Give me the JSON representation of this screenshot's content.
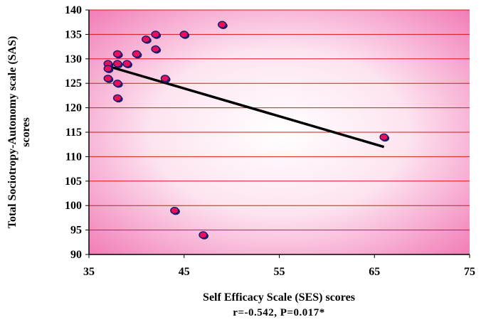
{
  "chart_data": {
    "type": "scatter",
    "title": "",
    "xlabel": "Self Efficacy Scale (SES) scores",
    "ylabel_line1": "Total Sociotropy-Autonomy scale (SAS)",
    "ylabel_line2": "scores",
    "caption": "r=-0.542, P=0.017*",
    "xlim": [
      35,
      75
    ],
    "ylim": [
      90,
      140
    ],
    "xticks": [
      35,
      45,
      55,
      65,
      75
    ],
    "yticks": [
      90,
      95,
      100,
      105,
      110,
      115,
      120,
      125,
      130,
      135,
      140
    ],
    "grid": "horizontal",
    "points": [
      {
        "x": 37,
        "y": 129
      },
      {
        "x": 37,
        "y": 128
      },
      {
        "x": 37,
        "y": 126
      },
      {
        "x": 38,
        "y": 131
      },
      {
        "x": 38,
        "y": 129
      },
      {
        "x": 38,
        "y": 125
      },
      {
        "x": 38,
        "y": 122
      },
      {
        "x": 39,
        "y": 129
      },
      {
        "x": 40,
        "y": 131
      },
      {
        "x": 41,
        "y": 134
      },
      {
        "x": 42,
        "y": 135
      },
      {
        "x": 42,
        "y": 132
      },
      {
        "x": 43,
        "y": 126
      },
      {
        "x": 45,
        "y": 135
      },
      {
        "x": 49,
        "y": 137
      },
      {
        "x": 44,
        "y": 99
      },
      {
        "x": 47,
        "y": 94
      },
      {
        "x": 66,
        "y": 114
      }
    ],
    "trendline": {
      "x": [
        37,
        66
      ],
      "y": [
        128.5,
        112
      ]
    },
    "colors": {
      "point_fill": "#e8105a",
      "point_edge": "#1c1c6e",
      "grid": "#d81818",
      "trendline": "#000000",
      "background_corner": "#f070b0",
      "background_center": "#ffffff"
    }
  }
}
